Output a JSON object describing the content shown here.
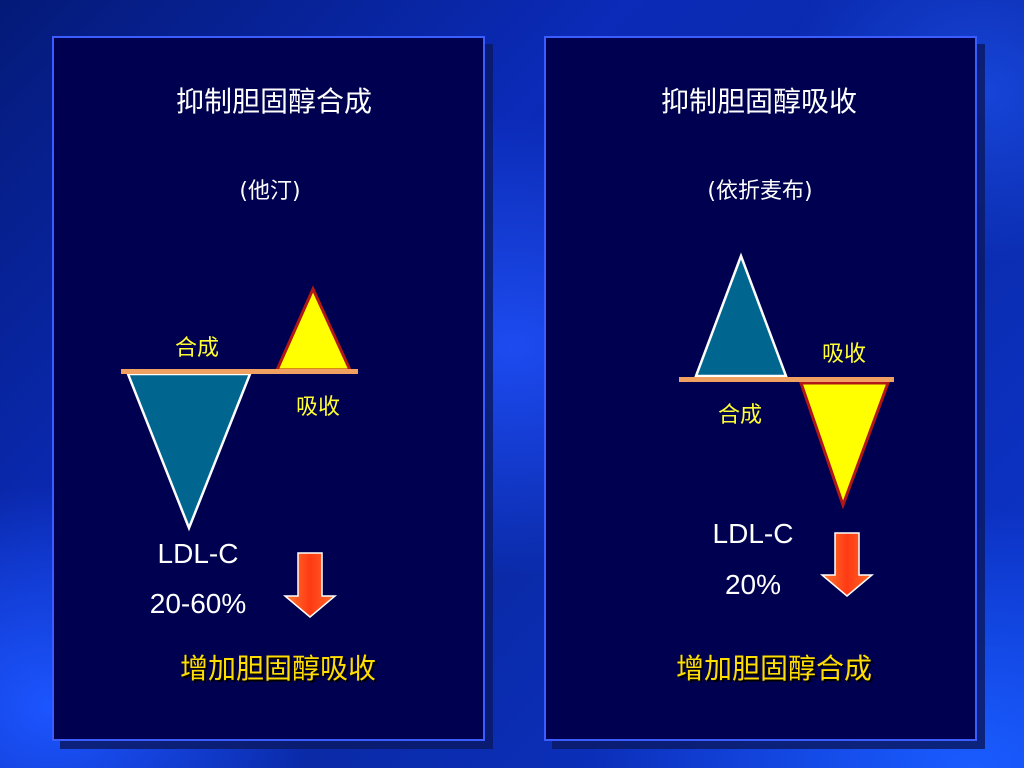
{
  "left_panel": {
    "title": "抑制胆固醇合成",
    "subtitle": "(他汀)",
    "label_synthesis": "合成",
    "label_absorption": "吸收",
    "ldl_label": "LDL-C",
    "ldl_value": "20-60%",
    "bottom_text": "增加胆固醇吸收"
  },
  "right_panel": {
    "title": "抑制胆固醇吸收",
    "subtitle": "(依折麦布)",
    "label_absorption": "吸收",
    "label_synthesis": "合成",
    "ldl_label": "LDL-C",
    "ldl_value": "20%",
    "bottom_text": "增加胆固醇合成"
  },
  "colors": {
    "panel_bg": "#000050",
    "panel_border": "#3b5cff",
    "synthesis_triangle": "#00668f",
    "absorption_triangle": "#ffff00",
    "balance_bar": "#f0a060",
    "arrow": "#ff4020",
    "label_text": "#ffff33",
    "bottom_text": "#ffdd00"
  }
}
